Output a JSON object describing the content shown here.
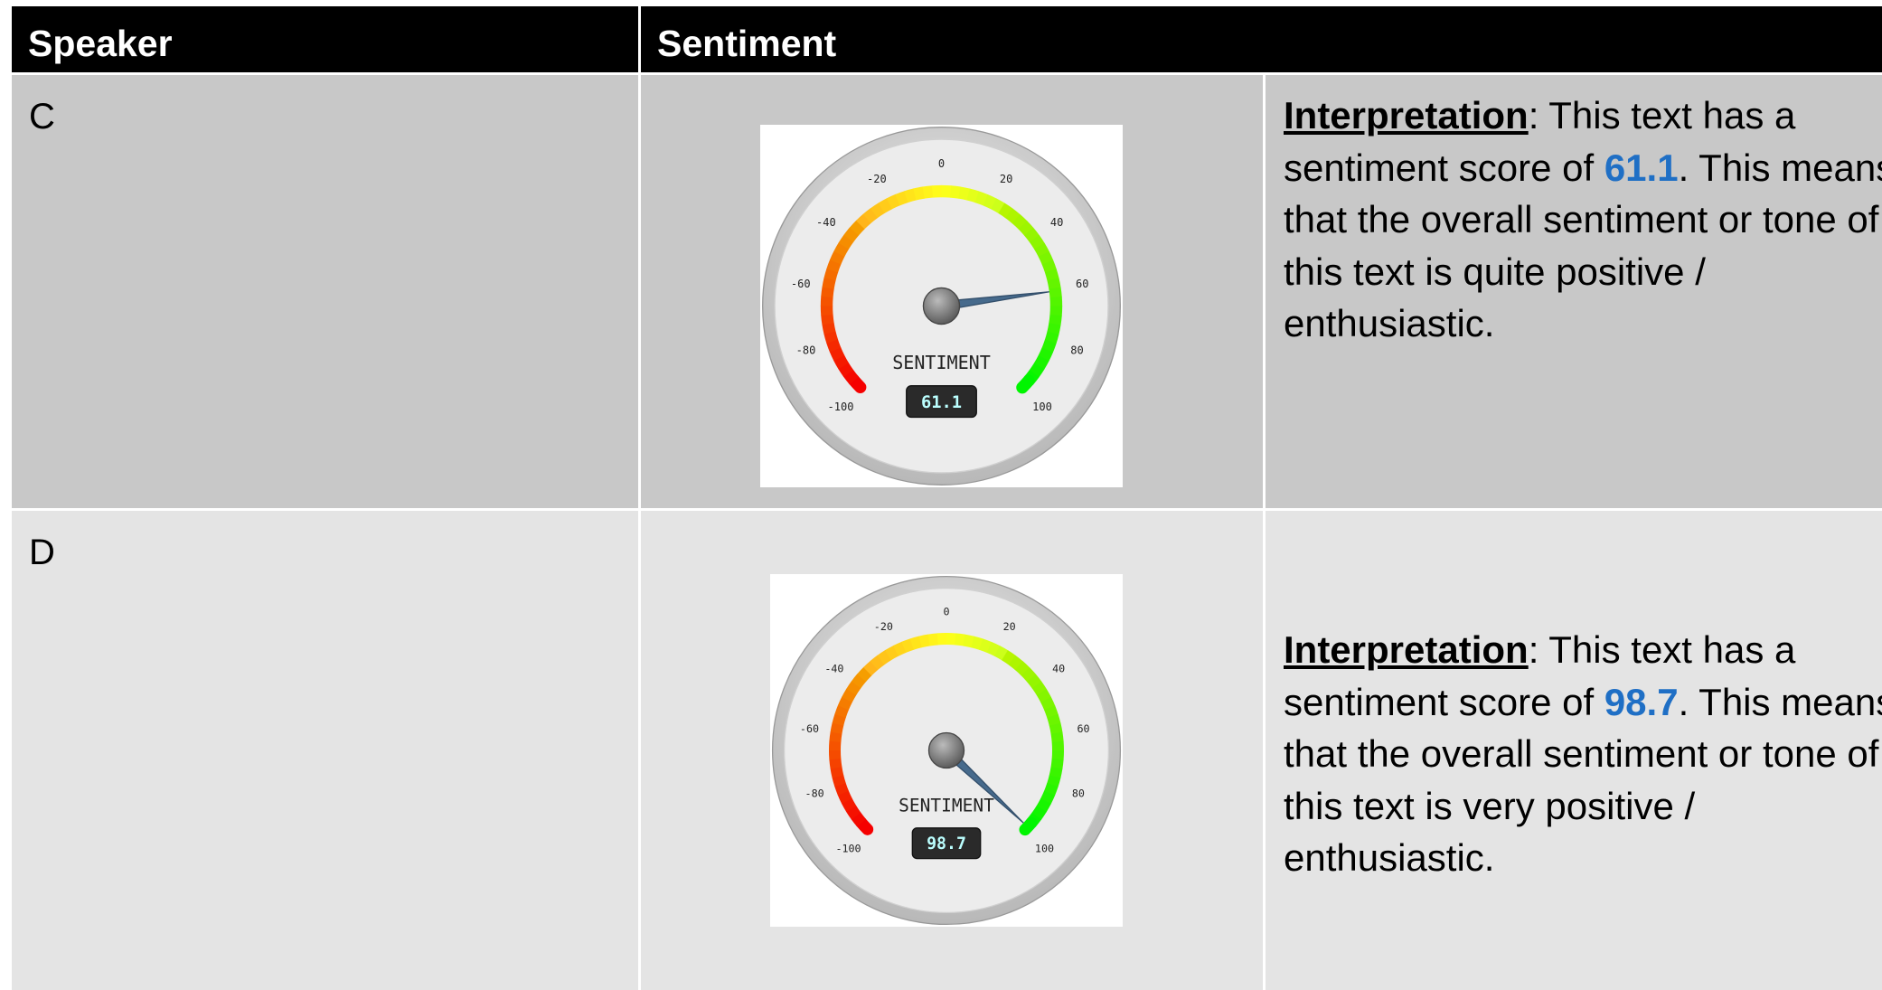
{
  "table": {
    "headers": [
      "Speaker",
      "Sentiment"
    ],
    "rows": [
      {
        "speaker": "C",
        "gauge": {
          "label": "SENTIMENT",
          "value": 61.1,
          "range": [
            -100,
            100
          ],
          "ticks": [
            -100,
            -80,
            -60,
            -40,
            -20,
            0,
            20,
            40,
            60,
            80,
            100
          ]
        },
        "interpretation": {
          "lead": "Interpretation",
          "before": ": This text has a sentiment score of ",
          "after": ". This means that the overall sentiment or tone of this text is quite positive / enthusiastic."
        }
      },
      {
        "speaker": "D",
        "gauge": {
          "label": "SENTIMENT",
          "value": 98.7,
          "range": [
            -100,
            100
          ],
          "ticks": [
            -100,
            -80,
            -60,
            -40,
            -20,
            0,
            20,
            40,
            60,
            80,
            100
          ]
        },
        "interpretation": {
          "lead": "Interpretation",
          "before": ": This text has a sentiment score of ",
          "after": ". This means that the overall sentiment or tone of this text is very positive / enthusiastic."
        }
      }
    ]
  }
}
